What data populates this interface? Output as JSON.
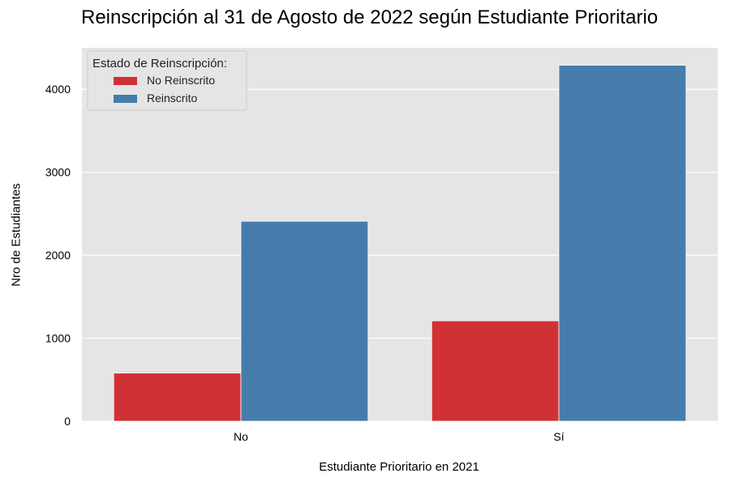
{
  "chart_data": {
    "type": "bar",
    "title": "Reinscripción al 31 de Agosto de 2022 según Estudiante Prioritario",
    "xlabel": "Estudiante Prioritario en 2021",
    "ylabel": "Nro de Estudiantes",
    "categories": [
      "No",
      "Sí"
    ],
    "series": [
      {
        "name": "No Reinscrito",
        "color": "#d03134",
        "values": [
          580,
          1210
        ]
      },
      {
        "name": "Reinscrito",
        "color": "#467cab",
        "values": [
          2410,
          4290
        ]
      }
    ],
    "ylim": [
      0,
      4500
    ],
    "yticks": [
      0,
      1000,
      2000,
      3000,
      4000
    ],
    "grid": true,
    "background": "#e5e5e5",
    "legend": {
      "title": "Estado de Reinscripción:",
      "placement": "top-left"
    }
  }
}
